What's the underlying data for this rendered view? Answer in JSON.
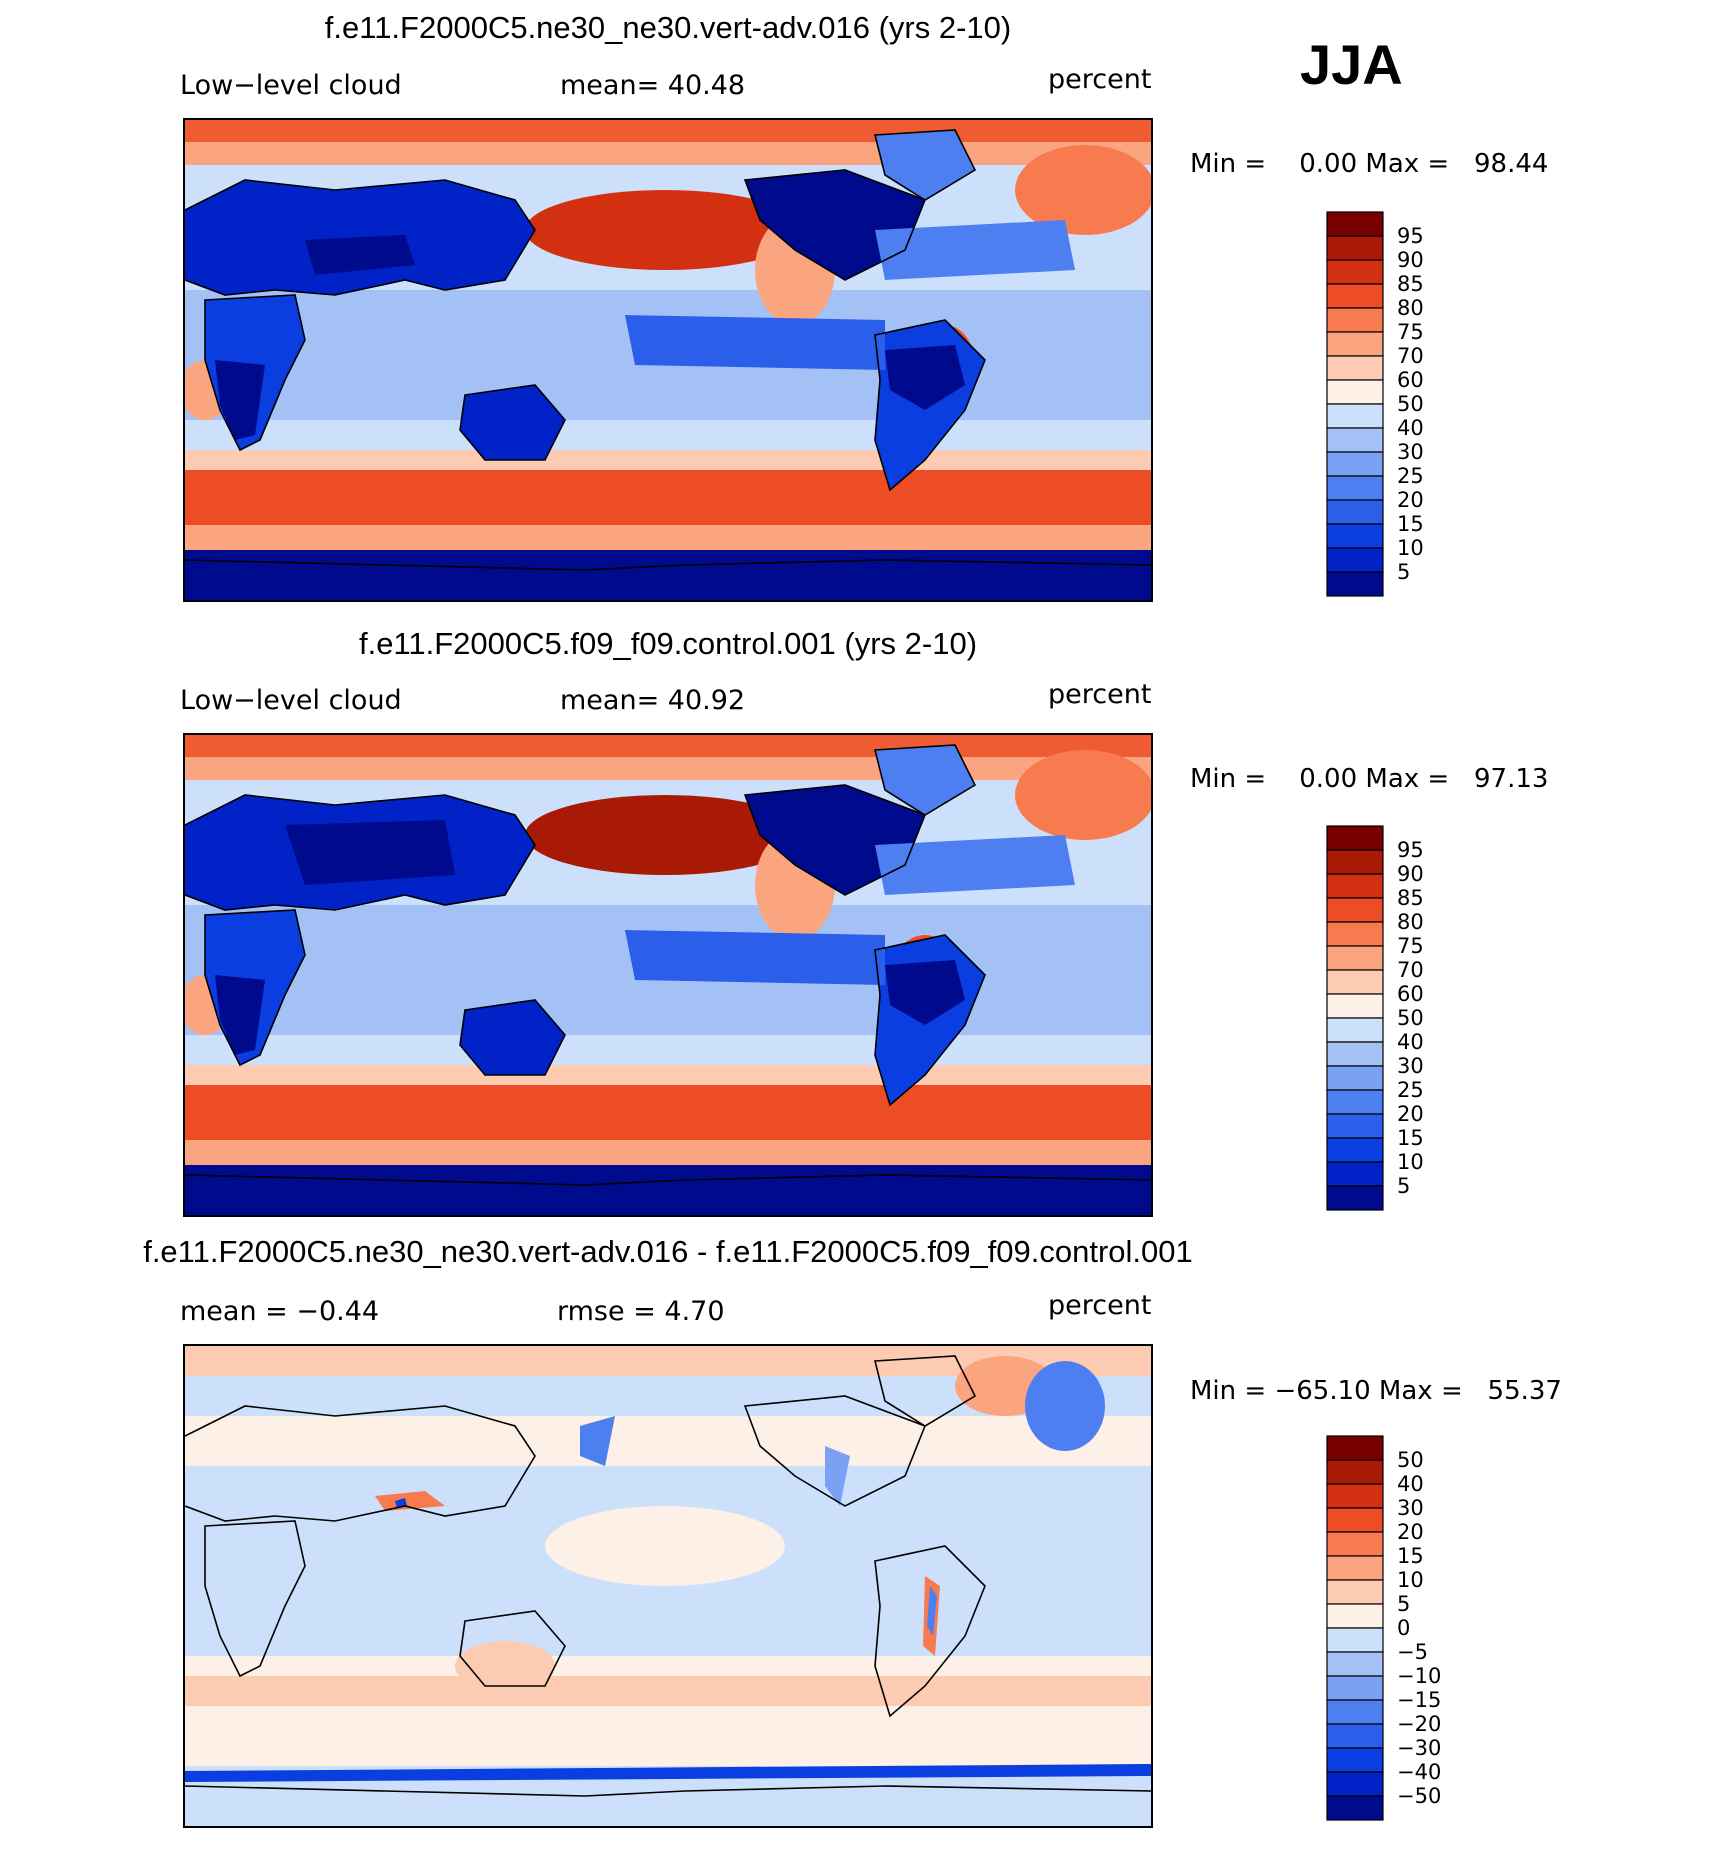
{
  "season": "JJA",
  "colors": {
    "levels_seq": [
      "#000a8c",
      "#0022c6",
      "#0a3ee0",
      "#2c5fe9",
      "#4d7ff0",
      "#7aa1f4",
      "#a4c1f6",
      "#cce0fb",
      "#fdf0e6",
      "#fccbb2",
      "#fba580",
      "#f87b4f",
      "#ec4d24",
      "#d33011",
      "#a91a06",
      "#7a0000"
    ],
    "ocean_neutral": "#dbe7fb",
    "coast": "#000000"
  },
  "panels": [
    {
      "title": "f.e11.F2000C5.ne30_ne30.vert-adv.016 (yrs 2-10)",
      "left_label": "Low−level cloud",
      "mid_label": "mean=   40.48",
      "right_label": "percent",
      "minmax": "Min =    0.00 Max =   98.44",
      "colorbar_ticks": [
        "95",
        "90",
        "85",
        "80",
        "75",
        "70",
        "60",
        "50",
        "40",
        "30",
        "25",
        "20",
        "15",
        "10",
        "5"
      ]
    },
    {
      "title": "f.e11.F2000C5.f09_f09.control.001 (yrs 2-10)",
      "left_label": "Low−level cloud",
      "mid_label": "mean=   40.92",
      "right_label": "percent",
      "minmax": "Min =    0.00 Max =   97.13",
      "colorbar_ticks": [
        "95",
        "90",
        "85",
        "80",
        "75",
        "70",
        "60",
        "50",
        "40",
        "30",
        "25",
        "20",
        "15",
        "10",
        "5"
      ]
    },
    {
      "title": "f.e11.F2000C5.ne30_ne30.vert-adv.016 - f.e11.F2000C5.f09_f09.control.001",
      "left_label": "mean =   −0.44",
      "mid_label": "rmse =     4.70",
      "right_label": "percent",
      "minmax": "Min = −65.10 Max =   55.37",
      "colorbar_ticks": [
        "50",
        "40",
        "30",
        "20",
        "15",
        "10",
        "5",
        "0",
        "−5",
        "−10",
        "−15",
        "−20",
        "−30",
        "−40",
        "−50"
      ]
    }
  ]
}
